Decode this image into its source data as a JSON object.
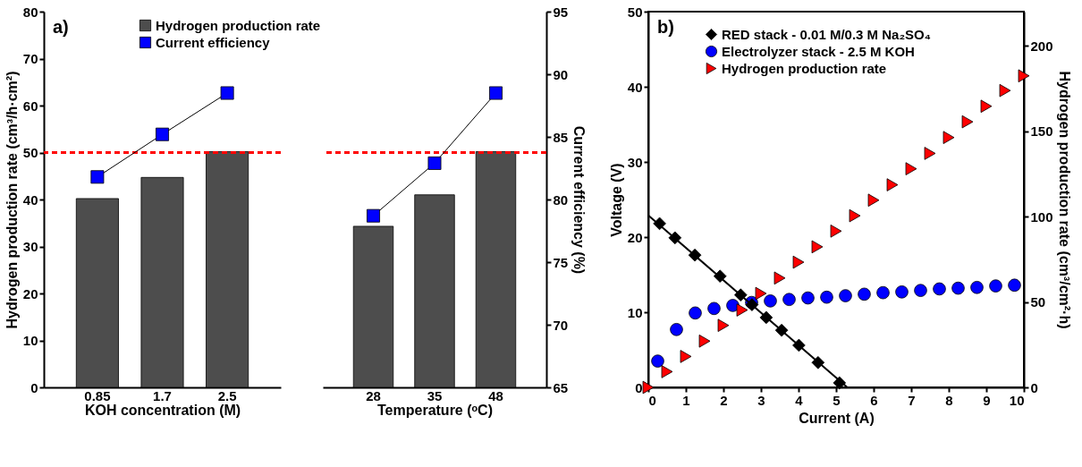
{
  "chart_data": [
    {
      "type": "bar",
      "annotations": [
        "a)"
      ],
      "xlabel": "KOH concentration (M)",
      "ylabel": "Hydrogen production rate (cm³/h·cm²)",
      "categories": [
        "0.85",
        "1.7",
        "2.5"
      ],
      "series": [
        {
          "name": "Hydrogen production rate",
          "color": "#4d4d4d",
          "values": [
            40.2,
            44.7,
            50.2
          ]
        },
        {
          "name": "Current efficiency",
          "type": "line",
          "axis": "y2",
          "marker": "square",
          "color": "#0000ff",
          "values": [
            81.8,
            85.2,
            88.5
          ]
        }
      ],
      "ylim": [
        0,
        80
      ],
      "yticks": [
        0,
        10,
        20,
        30,
        40,
        50,
        60,
        70,
        80
      ],
      "y2lim": [
        65,
        95
      ],
      "tick_labels": "xy",
      "ref_lines": [
        {
          "axis": "y",
          "value": 50,
          "color": "#ff0000",
          "line_style": "dashed"
        }
      ],
      "legend": "top"
    },
    {
      "type": "bar",
      "xlabel": "Temperature (ᵒC)",
      "y2label": "Current efficiency (%)",
      "categories": [
        "28",
        "35",
        "48"
      ],
      "series": [
        {
          "color": "#4d4d4d",
          "values": [
            34.3,
            41.0,
            50.2
          ]
        },
        {
          "type": "line",
          "axis": "y2",
          "marker": "square",
          "color": "#0000ff",
          "values": [
            78.7,
            82.9,
            88.5
          ]
        }
      ],
      "ylim": [
        0,
        80
      ],
      "y2lim": [
        65,
        95
      ],
      "y2ticks": [
        65,
        70,
        75,
        80,
        85,
        90,
        95
      ],
      "tick_labels": "xy2",
      "ref_lines": [
        {
          "axis": "y",
          "value": 50,
          "color": "#ff0000",
          "line_style": "dashed"
        }
      ]
    },
    {
      "type": "scatter",
      "annotations": [
        "b)"
      ],
      "xlabel": "Current (A)",
      "ylabel": "Voltage (V)",
      "y2label": "Hydrogen production rate (cm³/cm²·h)",
      "series": [
        {
          "name": "RED stack - 0.01 M/0.3 M Na₂SO₄",
          "marker": "diamond",
          "color": "#000000",
          "x": [
            0.3,
            0.71,
            1.24,
            1.91,
            2.46,
            2.76,
            3.14,
            3.55,
            4.01,
            4.52,
            5.09
          ],
          "values": [
            21.8,
            19.9,
            17.6,
            14.8,
            12.3,
            11.0,
            9.3,
            7.6,
            5.6,
            3.3,
            0.6
          ]
        },
        {
          "type": "line",
          "marker": "none",
          "color": "#000000",
          "x": [
            0,
            5.3
          ],
          "values": [
            22.9,
            0
          ]
        },
        {
          "name": "Electrolyzer stack - 2.5 M KOH",
          "marker": "circle",
          "color": "#0000ff",
          "x": [
            0.25,
            0.75,
            1.25,
            1.75,
            2.25,
            2.75,
            3.25,
            3.75,
            4.25,
            4.75,
            5.25,
            5.75,
            6.25,
            6.75,
            7.25,
            7.75,
            8.25,
            8.75,
            9.25,
            9.75
          ],
          "values": [
            3.5,
            7.7,
            9.9,
            10.5,
            10.9,
            11.3,
            11.5,
            11.7,
            11.9,
            12.0,
            12.2,
            12.4,
            12.6,
            12.7,
            12.9,
            13.1,
            13.2,
            13.3,
            13.5,
            13.6
          ]
        },
        {
          "name": "Hydrogen production rate",
          "marker": "triangle",
          "axis": "y2",
          "color": "#ff0000",
          "x": [
            0,
            0.5,
            1,
            1.5,
            2,
            2.5,
            3,
            3.5,
            4,
            4.5,
            5,
            5.5,
            6,
            6.5,
            7,
            7.5,
            8,
            8.5,
            9,
            9.5,
            10
          ],
          "values": [
            0,
            9.2,
            18.1,
            27.1,
            36.3,
            45.3,
            55.0,
            64.0,
            73.3,
            82.3,
            91.5,
            100.5,
            109.6,
            118.6,
            128.0,
            137.0,
            146.3,
            155.5,
            164.6,
            173.8,
            182.4
          ]
        }
      ],
      "xlim": [
        0,
        10
      ],
      "xticks": [
        0,
        1,
        2,
        3,
        4,
        5,
        6,
        7,
        8,
        9,
        10
      ],
      "ylim": [
        0,
        50
      ],
      "yticks": [
        0,
        10,
        20,
        30,
        40,
        50
      ],
      "y2lim": [
        0,
        220
      ],
      "y2ticks": [
        0,
        50,
        100,
        150,
        200
      ],
      "legend": "top left"
    }
  ]
}
